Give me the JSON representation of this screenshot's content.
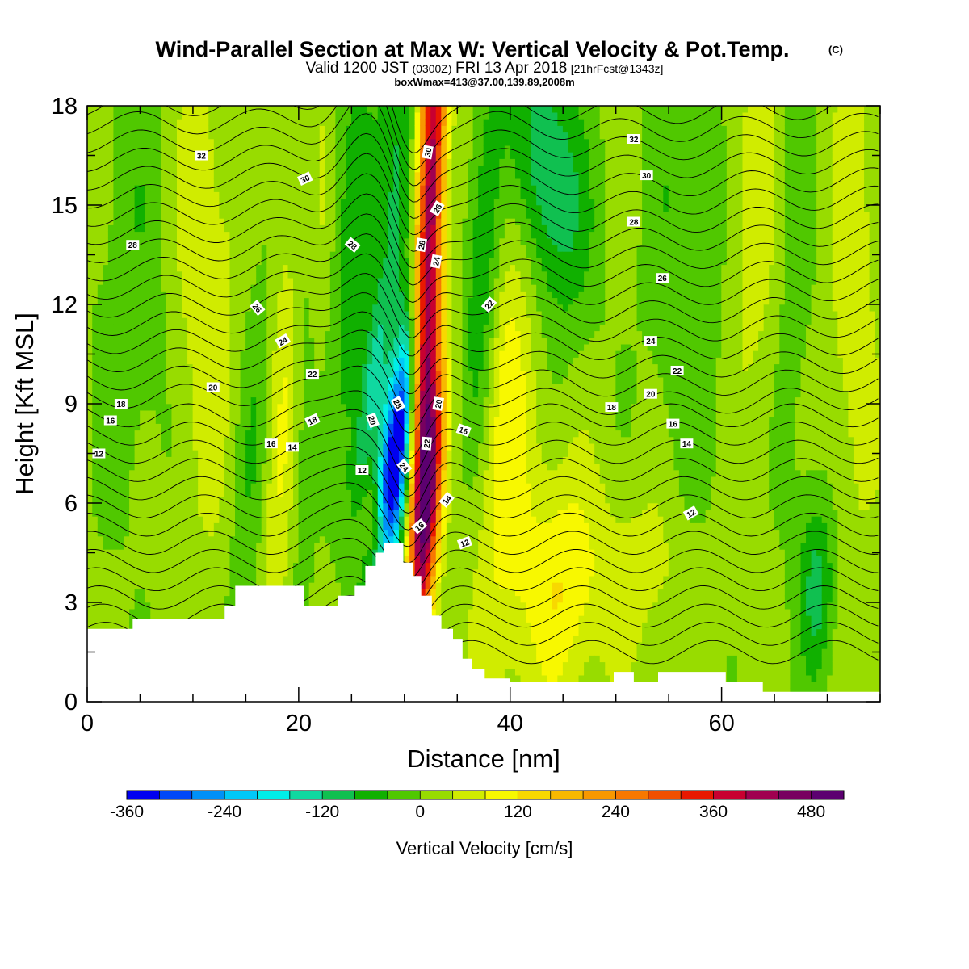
{
  "header": {
    "title": "Wind-Parallel Section at Max W: Vertical Velocity & Pot.Temp.",
    "copyright": "(C)",
    "valid_pre": "Valid 1200 JST",
    "valid_z": "(0300Z)",
    "valid_date": "FRI 13 Apr 2018",
    "valid_fcst": "[21hrFcst@1343z]",
    "boxw": "boxWmax=413@37.00,139.89,2008m"
  },
  "chart_data": {
    "type": "heatmap",
    "xlabel": "Distance [nm]",
    "ylabel": "Height [Kft MSL]",
    "xlim": [
      0,
      75
    ],
    "ylim": [
      0,
      18
    ],
    "x_ticks": [
      0,
      20,
      40,
      60
    ],
    "y_ticks": [
      0,
      3,
      6,
      9,
      12,
      15,
      18
    ],
    "colorbar": {
      "label": "Vertical Velocity [cm/s]",
      "min": -360,
      "step": 40,
      "tick_labels": [
        "-360",
        "-240",
        "-120",
        "0",
        "120",
        "240",
        "360",
        "480"
      ],
      "tick_values": [
        -360,
        -240,
        -120,
        0,
        120,
        240,
        360,
        480
      ],
      "colors": [
        "#0000f0",
        "#0048f8",
        "#0090f8",
        "#00c8f8",
        "#00eee8",
        "#10d8a0",
        "#10c050",
        "#10b000",
        "#50c800",
        "#98dc00",
        "#d0ec00",
        "#f8f800",
        "#f8d800",
        "#f8b800",
        "#f89800",
        "#f87800",
        "#f05000",
        "#e81800",
        "#c80030",
        "#a00050",
        "#780060",
        "#5c0070"
      ]
    },
    "terrain_kft": [
      [
        0,
        2.2
      ],
      [
        4.3,
        2.2
      ],
      [
        4.3,
        2.5
      ],
      [
        13,
        2.5
      ],
      [
        13,
        2.9
      ],
      [
        14,
        2.9
      ],
      [
        14,
        3.5
      ],
      [
        20.5,
        3.5
      ],
      [
        20.5,
        2.9
      ],
      [
        23.7,
        2.9
      ],
      [
        23.7,
        3.2
      ],
      [
        25.3,
        3.2
      ],
      [
        25.3,
        3.5
      ],
      [
        26.3,
        3.5
      ],
      [
        26.3,
        4.1
      ],
      [
        27.3,
        4.1
      ],
      [
        27.3,
        4.5
      ],
      [
        28.1,
        4.5
      ],
      [
        28.1,
        4.8
      ],
      [
        29.9,
        4.8
      ],
      [
        29.9,
        4.2
      ],
      [
        30.8,
        4.2
      ],
      [
        30.8,
        3.8
      ],
      [
        31.6,
        3.8
      ],
      [
        31.6,
        3.2
      ],
      [
        32.6,
        3.2
      ],
      [
        32.6,
        2.6
      ],
      [
        33.5,
        2.6
      ],
      [
        33.5,
        2.2
      ],
      [
        34.6,
        2.2
      ],
      [
        34.6,
        1.9
      ],
      [
        35.5,
        1.9
      ],
      [
        35.5,
        1.3
      ],
      [
        36.4,
        1.3
      ],
      [
        36.4,
        1.0
      ],
      [
        37.6,
        1.0
      ],
      [
        37.6,
        0.7
      ],
      [
        40,
        0.7
      ],
      [
        40,
        0.6
      ],
      [
        49.8,
        0.6
      ],
      [
        49.8,
        0.9
      ],
      [
        51.7,
        0.9
      ],
      [
        51.7,
        0.6
      ],
      [
        54,
        0.6
      ],
      [
        54,
        0.9
      ],
      [
        60.4,
        0.9
      ],
      [
        60.4,
        0.6
      ],
      [
        63.9,
        0.6
      ],
      [
        63.9,
        0.3
      ],
      [
        75,
        0.3
      ]
    ],
    "w_features": [
      {
        "x": 32.2,
        "z": 12.5,
        "sx": 0.9,
        "sz": 8.5,
        "tilt": 0.1,
        "amp": 470
      },
      {
        "x": 32.6,
        "z": 6.5,
        "sx": 0.8,
        "sz": 2.5,
        "tilt": 0.2,
        "amp": 260
      },
      {
        "x": 29.0,
        "z": 7.0,
        "sx": 1.1,
        "sz": 3.2,
        "tilt": 0.38,
        "amp": -400
      },
      {
        "x": 27.0,
        "z": 9.5,
        "sx": 0.8,
        "sz": 2.5,
        "tilt": 0.4,
        "amp": -130
      },
      {
        "x": 27.5,
        "z": 5.0,
        "sx": 0.8,
        "sz": 1.2,
        "tilt": 0,
        "amp": 150
      },
      {
        "x": 24.5,
        "z": 13,
        "sx": 2.0,
        "sz": 5,
        "tilt": 0.05,
        "amp": -90
      },
      {
        "x": 29.5,
        "z": 16,
        "sx": 1.3,
        "sz": 3,
        "tilt": 0,
        "amp": -110
      },
      {
        "x": 37.5,
        "z": 13,
        "sx": 1.2,
        "sz": 4,
        "tilt": 0.1,
        "amp": -120
      },
      {
        "x": 43.5,
        "z": 16,
        "sx": 2.5,
        "sz": 3,
        "tilt": -0.3,
        "amp": -150
      },
      {
        "x": 18.5,
        "z": 9,
        "sx": 1.3,
        "sz": 6,
        "tilt": 0.15,
        "amp": 85
      },
      {
        "x": 20.5,
        "z": 12,
        "sx": 1.0,
        "sz": 7,
        "tilt": 0.05,
        "amp": -75
      },
      {
        "x": 16,
        "z": 8,
        "sx": 1.5,
        "sz": 6,
        "tilt": 0.2,
        "amp": -60
      },
      {
        "x": 22,
        "z": 14,
        "sx": 1.5,
        "sz": 5,
        "tilt": 0,
        "amp": 70
      },
      {
        "x": 11,
        "z": 13,
        "sx": 2.5,
        "sz": 6,
        "tilt": 0,
        "amp": 55
      },
      {
        "x": 5,
        "z": 13,
        "sx": 3,
        "sz": 6,
        "tilt": 0,
        "amp": -45
      },
      {
        "x": 39.5,
        "z": 9,
        "sx": 2,
        "sz": 6,
        "tilt": 0.1,
        "amp": 90
      },
      {
        "x": 44.5,
        "z": 3.5,
        "sx": 2.5,
        "sz": 2.5,
        "tilt": 0,
        "amp": 95
      },
      {
        "x": 57,
        "z": 14,
        "sx": 3,
        "sz": 6,
        "tilt": 0,
        "amp": -55
      },
      {
        "x": 63.5,
        "z": 15,
        "sx": 2.5,
        "sz": 5,
        "tilt": 0,
        "amp": 55
      },
      {
        "x": 69,
        "z": 3.5,
        "sx": 1.2,
        "sz": 2,
        "tilt": 0,
        "amp": -110
      },
      {
        "x": 66.5,
        "z": 14,
        "sx": 1.5,
        "sz": 6,
        "tilt": 0,
        "amp": -55
      },
      {
        "x": 72.5,
        "z": 12,
        "sx": 1.5,
        "sz": 6,
        "tilt": 0,
        "amp": 50
      },
      {
        "x": 52,
        "z": 4,
        "sx": 4,
        "sz": 2,
        "tilt": 0,
        "amp": 45
      }
    ],
    "theta_labels": [
      {
        "t": "32",
        "x": 10.8,
        "z": 16.5,
        "r": 0
      },
      {
        "t": "30",
        "x": 20.6,
        "z": 15.8,
        "r": -25
      },
      {
        "t": "28",
        "x": 4.3,
        "z": 13.8,
        "r": 0
      },
      {
        "t": "28",
        "x": 25.1,
        "z": 13.8,
        "r": 40
      },
      {
        "t": "28",
        "x": 31.6,
        "z": 13.8,
        "r": -80
      },
      {
        "t": "26",
        "x": 16.1,
        "z": 11.9,
        "r": 50
      },
      {
        "t": "24",
        "x": 18.5,
        "z": 10.9,
        "r": -30
      },
      {
        "t": "22",
        "x": 21.3,
        "z": 9.9,
        "r": 0
      },
      {
        "t": "20",
        "x": 11.9,
        "z": 9.5,
        "r": 0
      },
      {
        "t": "18",
        "x": 3.2,
        "z": 9.0,
        "r": 0
      },
      {
        "t": "16",
        "x": 2.2,
        "z": 8.5,
        "r": 0
      },
      {
        "t": "12",
        "x": 1.1,
        "z": 7.5,
        "r": 0
      },
      {
        "t": "18",
        "x": 21.3,
        "z": 8.5,
        "r": -25
      },
      {
        "t": "20",
        "x": 27.0,
        "z": 8.5,
        "r": 70
      },
      {
        "t": "28",
        "x": 29.4,
        "z": 9.0,
        "r": 60
      },
      {
        "t": "30",
        "x": 32.2,
        "z": 16.6,
        "r": -80
      },
      {
        "t": "26",
        "x": 33.1,
        "z": 14.9,
        "r": -60
      },
      {
        "t": "24",
        "x": 33.0,
        "z": 13.3,
        "r": -80
      },
      {
        "t": "22",
        "x": 38.0,
        "z": 12.0,
        "r": -50
      },
      {
        "t": "20",
        "x": 33.2,
        "z": 9.0,
        "r": -80
      },
      {
        "t": "16",
        "x": 35.6,
        "z": 8.2,
        "r": 20
      },
      {
        "t": "22",
        "x": 32.1,
        "z": 7.8,
        "r": -85
      },
      {
        "t": "24",
        "x": 30.0,
        "z": 7.1,
        "r": 50
      },
      {
        "t": "16",
        "x": 17.4,
        "z": 7.8,
        "r": 0
      },
      {
        "t": "14",
        "x": 19.4,
        "z": 7.7,
        "r": 0
      },
      {
        "t": "12",
        "x": 26.0,
        "z": 7.0,
        "r": 0
      },
      {
        "t": "14",
        "x": 34.0,
        "z": 6.1,
        "r": -50
      },
      {
        "t": "16",
        "x": 31.4,
        "z": 5.3,
        "r": -40
      },
      {
        "t": "12",
        "x": 35.7,
        "z": 4.8,
        "r": -20
      },
      {
        "t": "32",
        "x": 51.7,
        "z": 17.0,
        "r": 0
      },
      {
        "t": "30",
        "x": 52.9,
        "z": 15.9,
        "r": 0
      },
      {
        "t": "28",
        "x": 51.7,
        "z": 14.5,
        "r": 0
      },
      {
        "t": "26",
        "x": 54.4,
        "z": 12.8,
        "r": 0
      },
      {
        "t": "24",
        "x": 53.3,
        "z": 10.9,
        "r": 0
      },
      {
        "t": "22",
        "x": 55.8,
        "z": 10.0,
        "r": 0
      },
      {
        "t": "20",
        "x": 53.3,
        "z": 9.3,
        "r": 0
      },
      {
        "t": "18",
        "x": 49.6,
        "z": 8.9,
        "r": 0
      },
      {
        "t": "16",
        "x": 55.4,
        "z": 8.4,
        "r": 0
      },
      {
        "t": "14",
        "x": 56.7,
        "z": 7.8,
        "r": 0
      },
      {
        "t": "12",
        "x": 57.1,
        "z": 5.7,
        "r": -30
      }
    ]
  }
}
